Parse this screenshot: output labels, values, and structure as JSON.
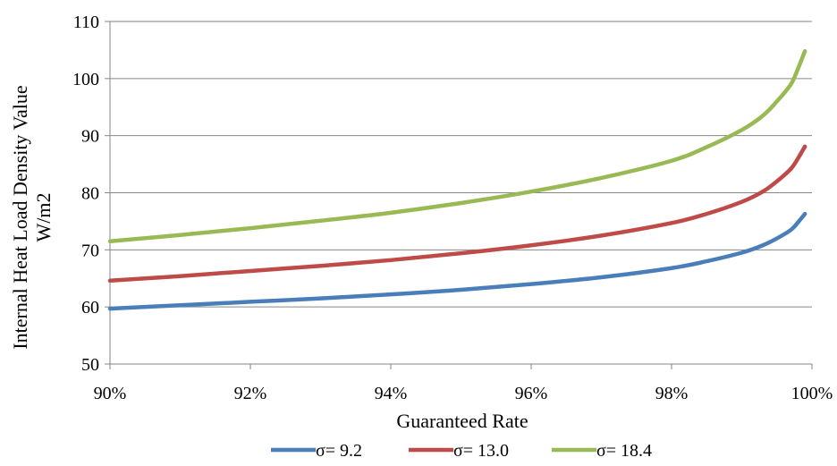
{
  "chart_data": {
    "type": "line",
    "title": "",
    "xlabel": "Guaranteed Rate",
    "ylabel": [
      "Internal Heat Load Density Value",
      "W/m2"
    ],
    "xlim": [
      0.9,
      1.0
    ],
    "ylim": [
      50,
      110
    ],
    "x_ticks": [
      "90%",
      "92%",
      "94%",
      "96%",
      "98%",
      "100%"
    ],
    "y_ticks": [
      "50",
      "60",
      "70",
      "80",
      "90",
      "100",
      "110"
    ],
    "grid": "horizontal",
    "legend_position": "bottom",
    "x": [
      0.9,
      0.91,
      0.92,
      0.93,
      0.94,
      0.95,
      0.96,
      0.97,
      0.98,
      0.985,
      0.99,
      0.993,
      0.995,
      0.997,
      0.998,
      0.999
    ],
    "series": [
      {
        "name": "σ= 9.2",
        "color": "#4a7ebb",
        "values": [
          59.7,
          60.3,
          60.9,
          61.5,
          62.2,
          63.0,
          64.0,
          65.2,
          66.8,
          68.0,
          69.5,
          70.8,
          72.0,
          73.5,
          74.8,
          76.3
        ]
      },
      {
        "name": "σ= 13.0",
        "color": "#be4b48",
        "values": [
          64.6,
          65.4,
          66.3,
          67.2,
          68.2,
          69.4,
          70.8,
          72.5,
          74.7,
          76.3,
          78.4,
          80.2,
          82.0,
          84.2,
          86.0,
          88.1
        ]
      },
      {
        "name": "σ= 18.4",
        "color": "#98b954",
        "values": [
          71.5,
          72.6,
          73.8,
          75.1,
          76.5,
          78.2,
          80.2,
          82.6,
          85.6,
          88.0,
          91.0,
          93.5,
          96.0,
          99.0,
          101.7,
          104.8
        ]
      }
    ]
  }
}
